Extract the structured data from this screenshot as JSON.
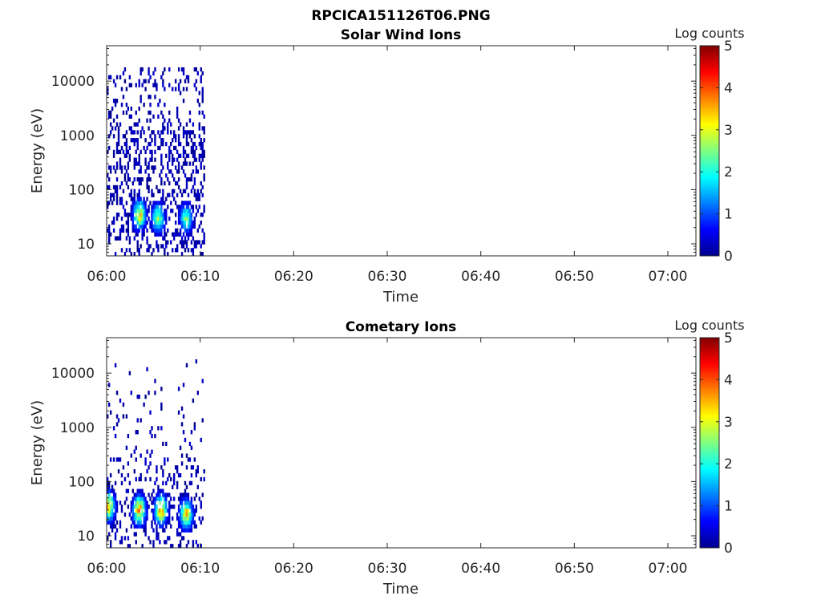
{
  "figure_title": "RPCICA151126T06.PNG",
  "chart_data": [
    {
      "type": "heatmap",
      "title": "Solar Wind Ions",
      "xlabel": "Time",
      "ylabel": "Energy (eV)",
      "x_ticks": [
        "06:00",
        "06:10",
        "06:20",
        "06:30",
        "06:40",
        "06:50",
        "07:00"
      ],
      "x_range": [
        "06:00",
        "07:03"
      ],
      "y_scale": "log",
      "y_ticks": [
        10,
        100,
        1000,
        10000
      ],
      "y_range": [
        6,
        45000
      ],
      "colorbar": {
        "label": "Log counts",
        "range": [
          0,
          5
        ],
        "ticks": [
          0,
          1,
          2,
          3,
          4,
          5
        ],
        "colormap": "jet"
      },
      "data_coverage": [
        "06:00",
        "06:10.5"
      ],
      "features": [
        {
          "description": "Sparse single counts from ~10 eV to ~15000 eV",
          "log_counts": 0.1
        },
        {
          "time": "06:03.5",
          "energy_eV": 35,
          "log_counts": 3.3
        },
        {
          "time": "06:05.5",
          "energy_eV": 30,
          "log_counts": 2.8
        },
        {
          "time": "06:08.5",
          "energy_eV": 30,
          "log_counts": 2.5
        }
      ]
    },
    {
      "type": "heatmap",
      "title": "Cometary Ions",
      "xlabel": "Time",
      "ylabel": "Energy (eV)",
      "x_ticks": [
        "06:00",
        "06:10",
        "06:20",
        "06:30",
        "06:40",
        "06:50",
        "07:00"
      ],
      "x_range": [
        "06:00",
        "07:03"
      ],
      "y_scale": "log",
      "y_ticks": [
        10,
        100,
        1000,
        10000
      ],
      "y_range": [
        6,
        45000
      ],
      "colorbar": {
        "label": "Log counts",
        "range": [
          0,
          5
        ],
        "ticks": [
          0,
          1,
          2,
          3,
          4,
          5
        ],
        "colormap": "jet"
      },
      "data_coverage": [
        "06:00",
        "06:10.5"
      ],
      "features": [
        {
          "time": "06:00.2",
          "energy_eV": 35,
          "log_counts": 3.5
        },
        {
          "time": "06:03.5",
          "energy_eV": 30,
          "log_counts": 3.8
        },
        {
          "time": "06:05.8",
          "energy_eV": 30,
          "log_counts": 3.8
        },
        {
          "time": "06:08.5",
          "energy_eV": 25,
          "log_counts": 3.5
        },
        {
          "time": "06:06",
          "energy_eV": 8000,
          "log_counts": 0.3
        }
      ]
    }
  ]
}
